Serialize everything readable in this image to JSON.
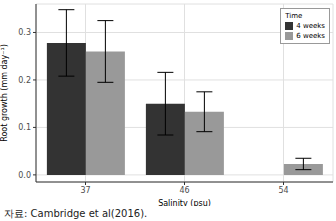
{
  "chart_data": {
    "type": "bar",
    "x_label": "Salinity (psu)",
    "y_label": "Root growth (mm day⁻¹)",
    "categories": [
      "37",
      "46",
      "54"
    ],
    "series": [
      {
        "name": "4 weeks",
        "color": "#333333",
        "values": [
          0.278,
          0.15,
          0.0
        ],
        "errors": [
          0.07,
          0.066,
          0.0
        ]
      },
      {
        "name": "6 weeks",
        "color": "#999999",
        "values": [
          0.26,
          0.133,
          0.023
        ],
        "errors": [
          0.065,
          0.042,
          0.012
        ]
      }
    ],
    "ylim": [
      -0.015,
      0.36
    ],
    "yticks": [
      {
        "value": 0,
        "label": "0.0"
      },
      {
        "value": 0.1,
        "label": "0.1"
      },
      {
        "value": 0.2,
        "label": "0.2"
      },
      {
        "value": 0.3,
        "label": "0.3"
      }
    ],
    "grid": true,
    "legend": "upper right",
    "legend_title": "Time",
    "annotations": [
      "자료: Cambridge et al(2016)."
    ]
  }
}
